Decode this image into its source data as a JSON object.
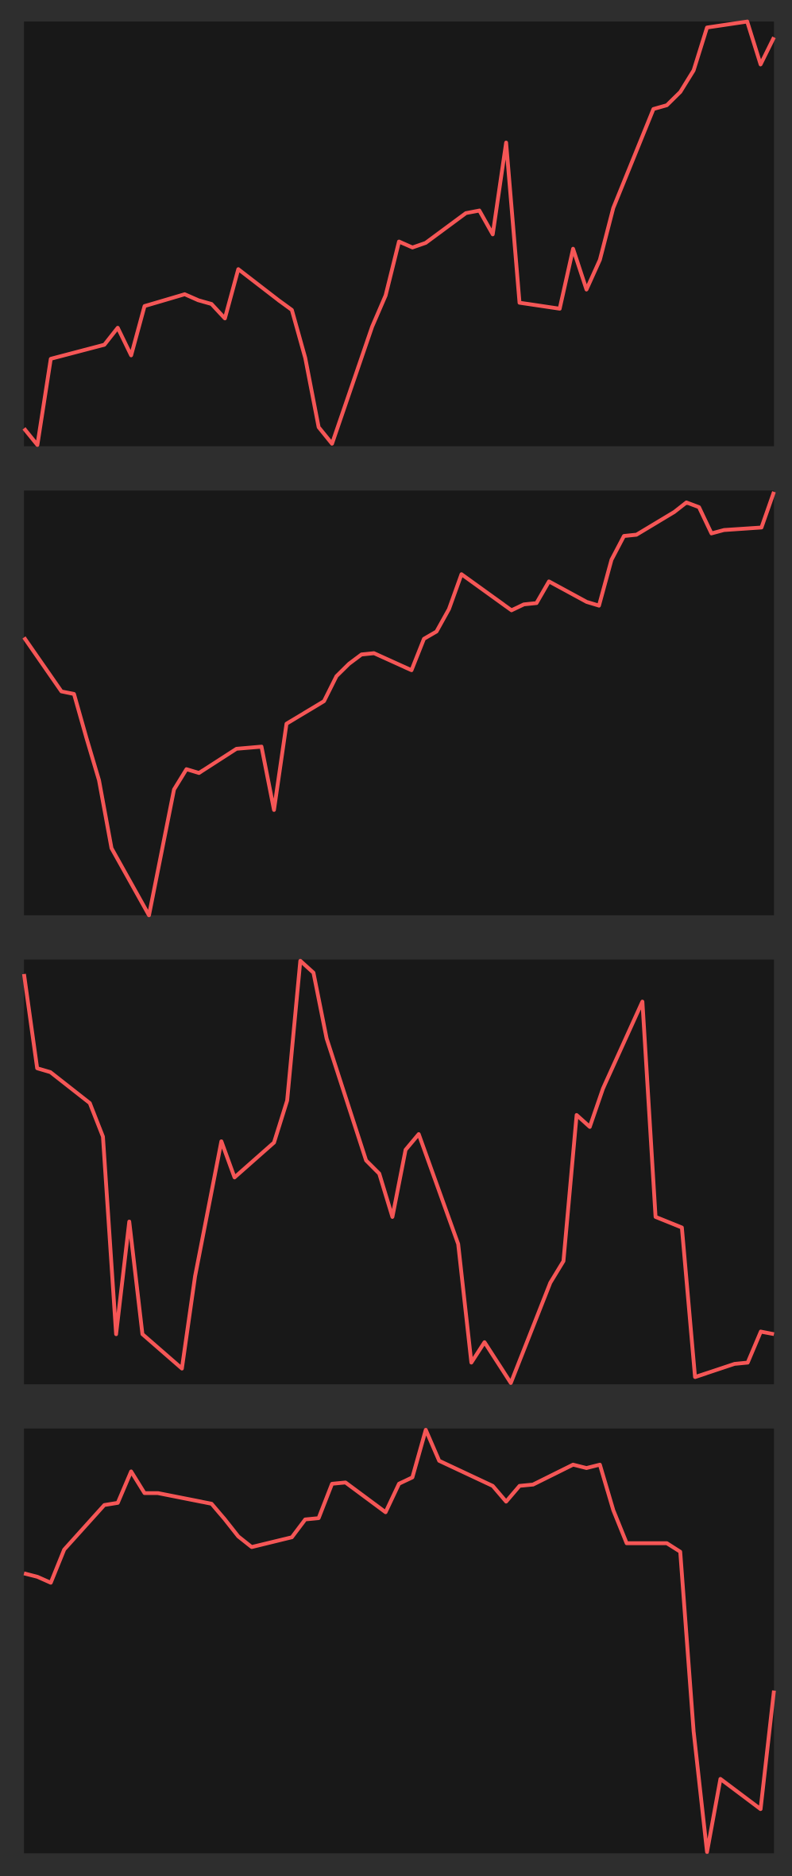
{
  "chart_data": [
    {
      "type": "line",
      "color": "#f55656",
      "xlim": [
        0,
        56
      ],
      "ylim": [
        0,
        100
      ],
      "x": [
        0,
        1,
        2,
        6,
        7,
        8,
        9,
        12,
        13,
        14,
        15,
        16,
        19,
        20,
        21,
        22,
        23,
        26,
        27,
        28,
        29,
        30,
        33,
        34,
        35,
        36,
        37,
        40,
        41,
        42,
        43,
        44,
        47,
        48,
        49,
        50,
        51,
        54,
        55,
        56
      ],
      "values": [
        4.2,
        0.3,
        20.6,
        23.9,
        27.9,
        21.4,
        33,
        35.8,
        34.4,
        33.5,
        30.1,
        41.7,
        34.4,
        32.1,
        20.8,
        4.5,
        0.6,
        28.2,
        35.5,
        48.2,
        46.8,
        47.9,
        54.9,
        55.5,
        49.9,
        71.5,
        33.8,
        32.4,
        46.5,
        36.9,
        43.9,
        56.1,
        79.4,
        80.3,
        83.4,
        88.5,
        98.6,
        100,
        89.9,
        96.3
      ]
    },
    {
      "type": "line",
      "color": "#f55656",
      "xlim": [
        0,
        60
      ],
      "ylim": [
        0,
        100
      ],
      "x": [
        0,
        3,
        4,
        5,
        6,
        7,
        10,
        12,
        13,
        14,
        17,
        19,
        20,
        21,
        24,
        25,
        26,
        27,
        28,
        31,
        32,
        33,
        34,
        35,
        39,
        40,
        41,
        42,
        45,
        46,
        47,
        48,
        49,
        52,
        53,
        54,
        55,
        56,
        59,
        60
      ],
      "values": [
        65.4,
        52.7,
        52.1,
        41.7,
        31.8,
        15.8,
        0,
        29.6,
        34.4,
        33.5,
        39.2,
        39.7,
        24.8,
        45.1,
        50.4,
        56.3,
        59.2,
        61.4,
        61.7,
        57.7,
        65.1,
        66.8,
        72.1,
        80.3,
        71.8,
        73.2,
        73.5,
        78.6,
        73.8,
        72.9,
        83.7,
        89.3,
        89.6,
        94.9,
        97.2,
        96.1,
        89.9,
        90.7,
        91.3,
        99.7
      ]
    },
    {
      "type": "line",
      "color": "#f55656",
      "xlim": [
        0,
        57
      ],
      "ylim": [
        0,
        100
      ],
      "x": [
        0,
        1,
        2,
        5,
        6,
        7,
        8,
        9,
        12,
        13,
        15,
        16,
        19,
        20,
        21,
        22,
        23,
        26,
        27,
        28,
        29,
        30,
        33,
        34,
        35,
        37,
        40,
        41,
        42,
        43,
        44,
        47,
        48,
        50,
        51,
        54,
        55,
        56,
        57
      ],
      "values": [
        96.6,
        74.4,
        73.5,
        66.2,
        58.3,
        11.8,
        38.3,
        11.8,
        3.7,
        25.4,
        57.2,
        48.7,
        56.9,
        66.8,
        99.7,
        96.9,
        81.4,
        52.7,
        49.6,
        39.4,
        55.2,
        58.9,
        33,
        5.1,
        9.9,
        0.3,
        23.9,
        29,
        63.4,
        60.6,
        69.6,
        90.1,
        39.4,
        36.9,
        1.7,
        4.8,
        5.1,
        12.4,
        11.8
      ]
    },
    {
      "type": "line",
      "color": "#f55656",
      "xlim": [
        0,
        56
      ],
      "ylim": [
        0,
        100
      ],
      "x": [
        0,
        1,
        2,
        3,
        6,
        7,
        8,
        9,
        10,
        14,
        15,
        16,
        17,
        20,
        21,
        22,
        23,
        24,
        27,
        28,
        29,
        30,
        31,
        35,
        36,
        37,
        38,
        41,
        42,
        43,
        44,
        45,
        48,
        49,
        50,
        51,
        52,
        55,
        56
      ],
      "values": [
        65.9,
        65.1,
        63.7,
        71.5,
        82,
        82.5,
        89.9,
        84.8,
        84.8,
        82.3,
        78.6,
        74.6,
        72.1,
        74.4,
        78.6,
        78.9,
        87,
        87.3,
        80.3,
        87,
        88.5,
        99.7,
        92.4,
        86.5,
        82.8,
        86.5,
        86.8,
        91.5,
        90.7,
        91.5,
        80.8,
        73,
        73,
        71,
        28.7,
        0.3,
        17.5,
        10.4,
        38.3
      ]
    }
  ]
}
